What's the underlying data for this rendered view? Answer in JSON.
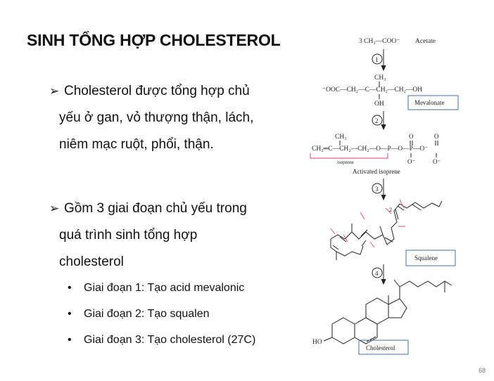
{
  "slide": {
    "title": "SINH TỔNG HỢP CHOLESTEROL",
    "page_number": "68"
  },
  "bullets": [
    {
      "marker": "➢",
      "lines": [
        "Cholesterol được tổng hợp chủ",
        "yếu ở gan, vỏ thượng thận, lách,",
        "niêm mạc ruột, phổi, thận."
      ]
    },
    {
      "marker": "➢",
      "lines": [
        "Gồm 3 giai đoạn chủ yếu trong",
        "quá trình sinh tổng hợp",
        "cholesterol"
      ],
      "sub_items": [
        "Giai đoạn 1: Tạo acid mevalonic",
        "Giai đoạn 2: Tạo squalen",
        "Giai đoạn 3: Tạo cholesterol (27C)"
      ]
    }
  ],
  "diagram": {
    "acetate_formula": "3 CH₃—COO⁻",
    "acetate_label": "Acetate",
    "steps": [
      "1",
      "2",
      "3",
      "4"
    ],
    "mevalonate_chain": "⁻OOC—CH₂—C—CH₂—CH₂—OH",
    "mevalonate_methyl": "CH₃",
    "mevalonate_oh": "OH",
    "mevalonate_label": "Mevalonate",
    "isoprene_chain": "CH₂═C—CH₂—CH₂—O—P—O—P—O⁻",
    "isoprene_methyl": "CH₃",
    "isoprene_o": "O",
    "isoprene_ominus": "O⁻",
    "isoprene_brace_label": "isoprene",
    "activated_isoprene_label": "Activated isoprene",
    "squalene_label": "Squalene",
    "squalene_locant": "2",
    "cholesterol_ho": "HO",
    "cholesterol_label": "Cholesterol",
    "colors": {
      "box_border": "#4a6fa5",
      "cut_marks": "#e05a6a",
      "isoprene_brace": "#e03a6a"
    }
  }
}
